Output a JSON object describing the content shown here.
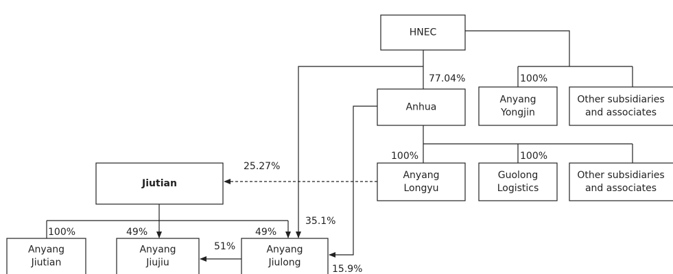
{
  "nodes": [
    {
      "lines": [
        "HNEC"
      ]
    },
    {
      "lines": [
        "Anhua"
      ]
    },
    {
      "lines": [
        "Anyang",
        "Yongjin"
      ]
    },
    {
      "lines": [
        "Other subsidiaries",
        "and associates"
      ]
    },
    {
      "lines": [
        "Anyang",
        "Longyu"
      ]
    },
    {
      "lines": [
        "Guolong",
        "Logistics"
      ]
    },
    {
      "lines": [
        "Other subsidiaries",
        "and associates"
      ]
    },
    {
      "lines": [
        "Jiutian"
      ]
    },
    {
      "lines": [
        "Anyang",
        "Jiutian"
      ]
    },
    {
      "lines": [
        "Anyang",
        "Jiujiu"
      ]
    },
    {
      "lines": [
        "Anyang",
        "Jiulong"
      ]
    }
  ],
  "edge_labels": [
    "77.04%",
    "100%",
    "35.1%",
    "15.9%",
    "100%",
    "100%",
    "25.27%",
    "100%",
    "49%",
    "49%",
    "51%"
  ]
}
